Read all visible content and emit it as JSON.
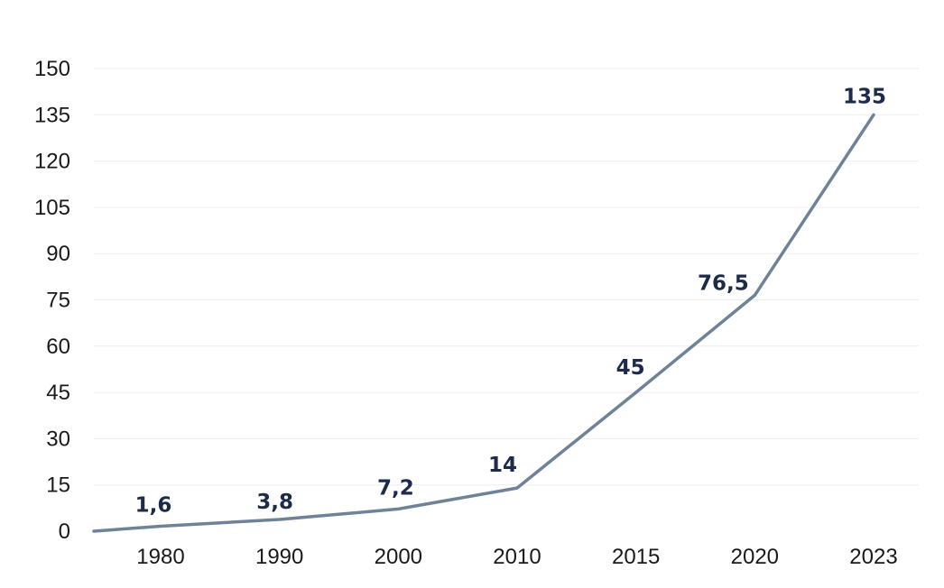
{
  "chart_data": {
    "type": "line",
    "title": "",
    "xlabel": "",
    "ylabel": "",
    "categories": [
      "1980",
      "1990",
      "2000",
      "2010",
      "2015",
      "2020",
      "2023"
    ],
    "series": [
      {
        "values": [
          1.6,
          3.8,
          7.2,
          14,
          45,
          76.5,
          135
        ],
        "data_labels": [
          "1,6",
          "3,8",
          "7,2",
          "14",
          "45",
          "76,5",
          "135"
        ],
        "color": "#6e8398"
      }
    ],
    "line_start_value": 0,
    "ylim": [
      0,
      150
    ],
    "yticks": [
      0,
      15,
      30,
      45,
      60,
      75,
      90,
      105,
      120,
      135,
      150
    ],
    "grid": true,
    "legend": "none",
    "label_color": "#1c2b4a"
  }
}
